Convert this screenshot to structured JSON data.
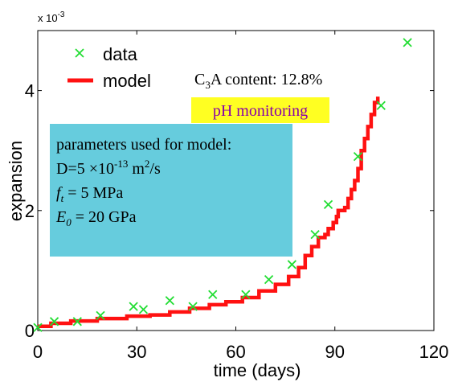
{
  "chart_data": {
    "type": "scatter",
    "xlabel": "time (days)",
    "ylabel": "expansion",
    "y_multiplier": "x 10",
    "y_multiplier_exp": "-3",
    "xlim": [
      0,
      120
    ],
    "ylim": [
      0,
      0.005
    ],
    "xticks": [
      0,
      30,
      60,
      90,
      120
    ],
    "xtick_labels": [
      "0",
      "30",
      "60",
      "90",
      "120"
    ],
    "yticks": [
      0,
      0.002,
      0.004
    ],
    "ytick_labels": [
      "0",
      "2",
      "4"
    ],
    "grid": false,
    "legend": {
      "placement": "top-left",
      "entries": [
        {
          "name": "data",
          "marker": "x",
          "color": "#22dd33"
        },
        {
          "name": "model",
          "marker": "line",
          "color": "#ff1111"
        }
      ]
    },
    "series": [
      {
        "name": "data",
        "kind": "scatter",
        "color": "#22dd33",
        "points": [
          [
            0,
            5e-05
          ],
          [
            5,
            0.00015
          ],
          [
            12,
            0.00015
          ],
          [
            19,
            0.00025
          ],
          [
            29,
            0.0004
          ],
          [
            32,
            0.00035
          ],
          [
            40,
            0.0005
          ],
          [
            47,
            0.0004
          ],
          [
            53,
            0.0006
          ],
          [
            63,
            0.0006
          ],
          [
            70,
            0.00085
          ],
          [
            77,
            0.0011
          ],
          [
            84,
            0.0016
          ],
          [
            88,
            0.0021
          ],
          [
            97,
            0.0029
          ],
          [
            104,
            0.00375
          ],
          [
            112,
            0.0048
          ]
        ]
      },
      {
        "name": "model",
        "kind": "step-line",
        "color": "#ff1111",
        "points": [
          [
            0,
            7e-05
          ],
          [
            4,
            0.00012
          ],
          [
            10,
            0.00016
          ],
          [
            18,
            0.0002
          ],
          [
            27,
            0.00024
          ],
          [
            34,
            0.00026
          ],
          [
            40,
            0.00031
          ],
          [
            46,
            0.00037
          ],
          [
            52,
            0.00043
          ],
          [
            57,
            0.00048
          ],
          [
            62,
            0.00055
          ],
          [
            67,
            0.00066
          ],
          [
            72,
            0.00077
          ],
          [
            76,
            0.0009
          ],
          [
            79,
            0.00105
          ],
          [
            81,
            0.00125
          ],
          [
            83,
            0.0014
          ],
          [
            85,
            0.00155
          ],
          [
            87,
            0.0016
          ],
          [
            88,
            0.0017
          ],
          [
            89.5,
            0.0018
          ],
          [
            90.5,
            0.0019
          ],
          [
            91,
            0.002
          ],
          [
            93,
            0.00205
          ],
          [
            94,
            0.0022
          ],
          [
            95,
            0.00235
          ],
          [
            96,
            0.0025
          ],
          [
            97,
            0.0027
          ],
          [
            98,
            0.003
          ],
          [
            99,
            0.0032
          ],
          [
            100,
            0.0034
          ],
          [
            101,
            0.0036
          ],
          [
            102,
            0.0038
          ],
          [
            103,
            0.0039
          ]
        ]
      }
    ],
    "annotations": {
      "c3a_prefix": "C",
      "c3a_sub": "3",
      "c3a_rest": "A content: 12.8%",
      "ph_label": "pH monitoring",
      "ph_bg": "#ffff22",
      "ph_color": "#8800aa",
      "params_bg": "#66ccdd",
      "params_title": "parameters used for model:",
      "d_line_a": "D=5 ",
      "d_line_b": "×10",
      "d_line_exp1": "-13",
      "d_line_c": " m",
      "d_line_exp2": "2",
      "d_line_d": "/s",
      "ft_var": "f",
      "ft_sub": "t",
      "ft_val": " = 5 MPa",
      "e0_var": "E",
      "e0_sub": "0",
      "e0_val": " = 20 GPa"
    }
  }
}
